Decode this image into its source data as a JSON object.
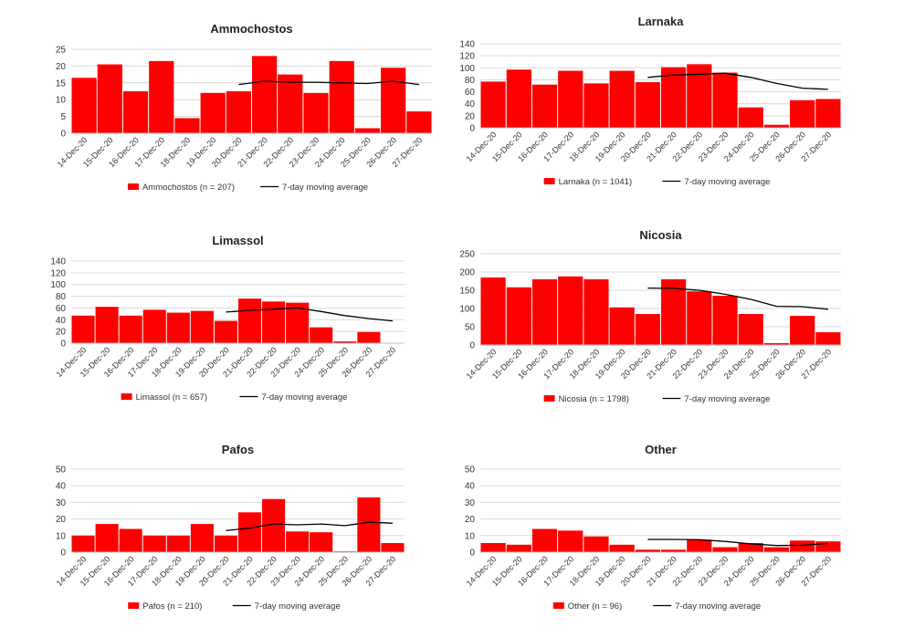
{
  "colors": {
    "bars": "#ff0000",
    "avg": "#000000"
  },
  "chart_data": [
    {
      "type": "bar",
      "title": "Ammochostos",
      "categories": [
        "14-Dec-20",
        "15-Dec-20",
        "16-Dec-20",
        "17-Dec-20",
        "18-Dec-20",
        "19-Dec-20",
        "20-Dec-20",
        "21-Dec-20",
        "22-Dec-20",
        "23-Dec-20",
        "24-Dec-20",
        "25-Dec-20",
        "26-Dec-20",
        "27-Dec-20"
      ],
      "ylim": [
        0,
        25
      ],
      "yticks": [
        0,
        5,
        10,
        15,
        20,
        25
      ],
      "grid": true,
      "legend_position": "bottom",
      "series": [
        {
          "name": "Ammochostos (n = 207)",
          "kind": "bar",
          "values": [
            16.5,
            20.5,
            12.5,
            21.5,
            4.5,
            12,
            12.5,
            23,
            17.5,
            12,
            21.5,
            1.5,
            19.5,
            6.5
          ]
        },
        {
          "name": "7-day moving average",
          "kind": "line",
          "values": [
            null,
            null,
            null,
            null,
            null,
            null,
            14.5,
            15.5,
            15.2,
            15.2,
            15,
            14.8,
            15.5,
            14.5
          ]
        }
      ]
    },
    {
      "type": "bar",
      "title": "Larnaka",
      "categories": [
        "14-Dec-20",
        "15-Dec-20",
        "16-Dec-20",
        "17-Dec-20",
        "18-Dec-20",
        "19-Dec-20",
        "20-Dec-20",
        "21-Dec-20",
        "22-Dec-20",
        "23-Dec-20",
        "24-Dec-20",
        "25-Dec-20",
        "26-Dec-20",
        "27-Dec-20"
      ],
      "ylim": [
        0,
        140
      ],
      "yticks": [
        0,
        20,
        40,
        60,
        80,
        100,
        120,
        140
      ],
      "grid": true,
      "legend_position": "bottom",
      "series": [
        {
          "name": "Larnaka (n = 1041)",
          "kind": "bar",
          "values": [
            77,
            97,
            72,
            95,
            74,
            95,
            76,
            101,
            106,
            92,
            34,
            5,
            46,
            48
          ]
        },
        {
          "name": "7-day moving average",
          "kind": "line",
          "values": [
            null,
            null,
            null,
            null,
            null,
            null,
            84,
            88,
            89,
            91,
            84,
            74,
            66,
            64
          ]
        }
      ]
    },
    {
      "type": "bar",
      "title": "Limassol",
      "categories": [
        "14-Dec-20",
        "15-Dec-20",
        "16-Dec-20",
        "17-Dec-20",
        "18-Dec-20",
        "19-Dec-20",
        "20-Dec-20",
        "21-Dec-20",
        "22-Dec-20",
        "23-Dec-20",
        "24-Dec-20",
        "25-Dec-20",
        "26-Dec-20",
        "27-Dec-20"
      ],
      "ylim": [
        0,
        140
      ],
      "yticks": [
        0,
        20,
        40,
        60,
        80,
        100,
        120,
        140
      ],
      "grid": true,
      "legend_position": "bottom",
      "series": [
        {
          "name": "Limassol (n = 657)",
          "kind": "bar",
          "values": [
            47,
            62,
            47,
            57,
            52,
            55,
            38,
            76,
            71,
            69,
            27,
            3,
            19,
            null
          ]
        },
        {
          "name": "7-day moving average",
          "kind": "line",
          "values": [
            null,
            null,
            null,
            null,
            null,
            null,
            53,
            56,
            58,
            60,
            54,
            47,
            42,
            38
          ]
        }
      ]
    },
    {
      "type": "bar",
      "title": "Nicosia",
      "categories": [
        "14-Dec-20",
        "15-Dec-20",
        "16-Dec-20",
        "17-Dec-20",
        "18-Dec-20",
        "19-Dec-20",
        "20-Dec-20",
        "21-Dec-20",
        "22-Dec-20",
        "23-Dec-20",
        "24-Dec-20",
        "25-Dec-20",
        "26-Dec-20",
        "27-Dec-20"
      ],
      "ylim": [
        0,
        250
      ],
      "yticks": [
        0,
        50,
        100,
        150,
        200,
        250
      ],
      "grid": true,
      "legend_position": "bottom",
      "series": [
        {
          "name": "Nicosia (n = 1798)",
          "kind": "bar",
          "values": [
            185,
            158,
            180,
            188,
            180,
            103,
            85,
            180,
            147,
            135,
            85,
            5,
            80,
            35
          ]
        },
        {
          "name": "7-day moving average",
          "kind": "line",
          "values": [
            null,
            null,
            null,
            null,
            null,
            null,
            156,
            155,
            150,
            139,
            125,
            106,
            105,
            98
          ]
        }
      ]
    },
    {
      "type": "bar",
      "title": "Pafos",
      "categories": [
        "14-Dec-20",
        "15-Dec-20",
        "16-Dec-20",
        "17-Dec-20",
        "18-Dec-20",
        "19-Dec-20",
        "20-Dec-20",
        "21-Dec-20",
        "22-Dec-20",
        "23-Dec-20",
        "24-Dec-20",
        "25-Dec-20",
        "26-Dec-20",
        "27-Dec-20"
      ],
      "ylim": [
        0,
        50
      ],
      "yticks": [
        0,
        10,
        20,
        30,
        40,
        50
      ],
      "grid": true,
      "legend_position": "bottom",
      "series": [
        {
          "name": "Pafos (n = 210)",
          "kind": "bar",
          "values": [
            10,
            17,
            14,
            10,
            10,
            17,
            10,
            24,
            32,
            12.5,
            12,
            0.5,
            33,
            5.5
          ]
        },
        {
          "name": "7-day moving average",
          "kind": "line",
          "values": [
            null,
            null,
            null,
            null,
            null,
            null,
            13,
            14.5,
            17,
            16.5,
            17,
            16,
            18,
            17.5
          ]
        }
      ]
    },
    {
      "type": "bar",
      "title": "Other",
      "categories": [
        "14-Dec-20",
        "15-Dec-20",
        "16-Dec-20",
        "17-Dec-20",
        "18-Dec-20",
        "19-Dec-20",
        "20-Dec-20",
        "21-Dec-20",
        "22-Dec-20",
        "23-Dec-20",
        "24-Dec-20",
        "25-Dec-20",
        "26-Dec-20",
        "27-Dec-20"
      ],
      "ylim": [
        0,
        50
      ],
      "yticks": [
        0,
        10,
        20,
        30,
        40,
        50
      ],
      "grid": true,
      "legend_position": "bottom",
      "series": [
        {
          "name": "Other (n = 96)",
          "kind": "bar",
          "values": [
            5.5,
            4.5,
            14,
            13,
            9.5,
            4.5,
            1.5,
            1.5,
            7.5,
            3,
            5.5,
            3,
            7,
            6.5
          ]
        },
        {
          "name": "7-day moving average",
          "kind": "line",
          "values": [
            null,
            null,
            null,
            null,
            null,
            null,
            7.7,
            7.7,
            7.5,
            6.5,
            5,
            4,
            4.2,
            5.3
          ]
        }
      ]
    }
  ]
}
